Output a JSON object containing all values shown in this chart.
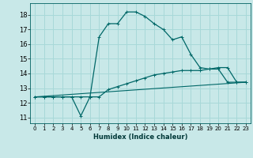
{
  "xlabel": "Humidex (Indice chaleur)",
  "bg_color": "#c8e8e8",
  "grid_color": "#a8d8d8",
  "line_color": "#006868",
  "xlim": [
    -0.5,
    23.5
  ],
  "ylim": [
    10.6,
    18.8
  ],
  "yticks": [
    11,
    12,
    13,
    14,
    15,
    16,
    17,
    18
  ],
  "xticks": [
    0,
    1,
    2,
    3,
    4,
    5,
    6,
    7,
    8,
    9,
    10,
    11,
    12,
    13,
    14,
    15,
    16,
    17,
    18,
    19,
    20,
    21,
    22,
    23
  ],
  "line1_x": [
    0,
    1,
    2,
    3,
    4,
    5,
    6,
    7,
    8,
    9,
    10,
    11,
    12,
    13,
    14,
    15,
    16,
    17,
    18,
    19,
    20,
    21,
    22,
    23
  ],
  "line1_y": [
    12.4,
    12.4,
    12.4,
    12.4,
    12.4,
    11.1,
    12.4,
    16.5,
    17.4,
    17.4,
    18.2,
    18.2,
    17.9,
    17.4,
    17.0,
    16.3,
    16.5,
    15.3,
    14.4,
    14.3,
    14.4,
    14.4,
    13.4,
    13.4
  ],
  "line2_x": [
    0,
    1,
    2,
    3,
    4,
    5,
    6,
    7,
    8,
    9,
    10,
    11,
    12,
    13,
    14,
    15,
    16,
    17,
    18,
    19,
    20,
    21,
    22,
    23
  ],
  "line2_y": [
    12.4,
    12.4,
    12.4,
    12.4,
    12.4,
    12.4,
    12.4,
    12.4,
    12.9,
    13.1,
    13.3,
    13.5,
    13.7,
    13.9,
    14.0,
    14.1,
    14.2,
    14.2,
    14.2,
    14.3,
    14.3,
    13.4,
    13.4,
    13.4
  ],
  "line3_x": [
    0,
    23
  ],
  "line3_y": [
    12.4,
    13.4
  ]
}
